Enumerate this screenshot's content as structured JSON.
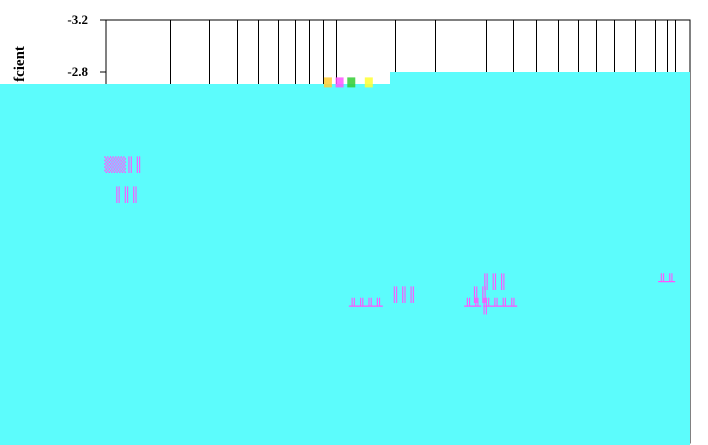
{
  "chart_data": {
    "type": "scatter",
    "title": "",
    "xlabel": "",
    "ylabel": "fcient",
    "yaxis_inverted": true,
    "ylim": [
      -3.2,
      -2.8
    ],
    "y_ticks": [
      {
        "value": -3.2,
        "label": "-3.2"
      },
      {
        "value": -2.8,
        "label": "-2.8"
      }
    ],
    "x_gridlines": [
      0.11,
      0.176,
      0.225,
      0.26,
      0.295,
      0.323,
      0.347,
      0.372,
      0.393,
      0.495,
      0.563,
      0.65,
      0.697,
      0.736,
      0.774,
      0.809,
      0.839,
      0.87,
      0.905,
      0.94,
      0.96,
      0.975
    ],
    "grid": true,
    "overlay_color": "#5cfcfc",
    "background_color": "#ffffff",
    "mark_color": "#ff55ff",
    "series": [
      {
        "points": [
          {
            "x": 0.03,
            "y": -2.05,
            "glyph": "▒▒║║"
          },
          {
            "x": 0.035,
            "y": -1.82,
            "glyph": "║║║"
          },
          {
            "x": 0.51,
            "y": -1.05,
            "glyph": "║║║"
          },
          {
            "x": 0.445,
            "y": -0.96,
            "glyph": "╨╨╨╨"
          },
          {
            "x": 0.64,
            "y": -1.05,
            "glyph": "║║"
          },
          {
            "x": 0.665,
            "y": -1.15,
            "glyph": "║║║"
          },
          {
            "x": 0.635,
            "y": -0.96,
            "glyph": "╨╨║"
          },
          {
            "x": 0.675,
            "y": -0.96,
            "glyph": "╨╨╨╨"
          },
          {
            "x": 0.96,
            "y": -1.15,
            "glyph": "╨╨"
          }
        ]
      }
    ],
    "highlight_points": [
      {
        "x": 0.38,
        "y": -2.72,
        "color": "#ffcc33"
      },
      {
        "x": 0.4,
        "y": -2.72,
        "color": "#ff55ff"
      },
      {
        "x": 0.42,
        "y": -2.72,
        "color": "#33cc33"
      },
      {
        "x": 0.45,
        "y": -2.72,
        "color": "#ffff33"
      }
    ]
  }
}
